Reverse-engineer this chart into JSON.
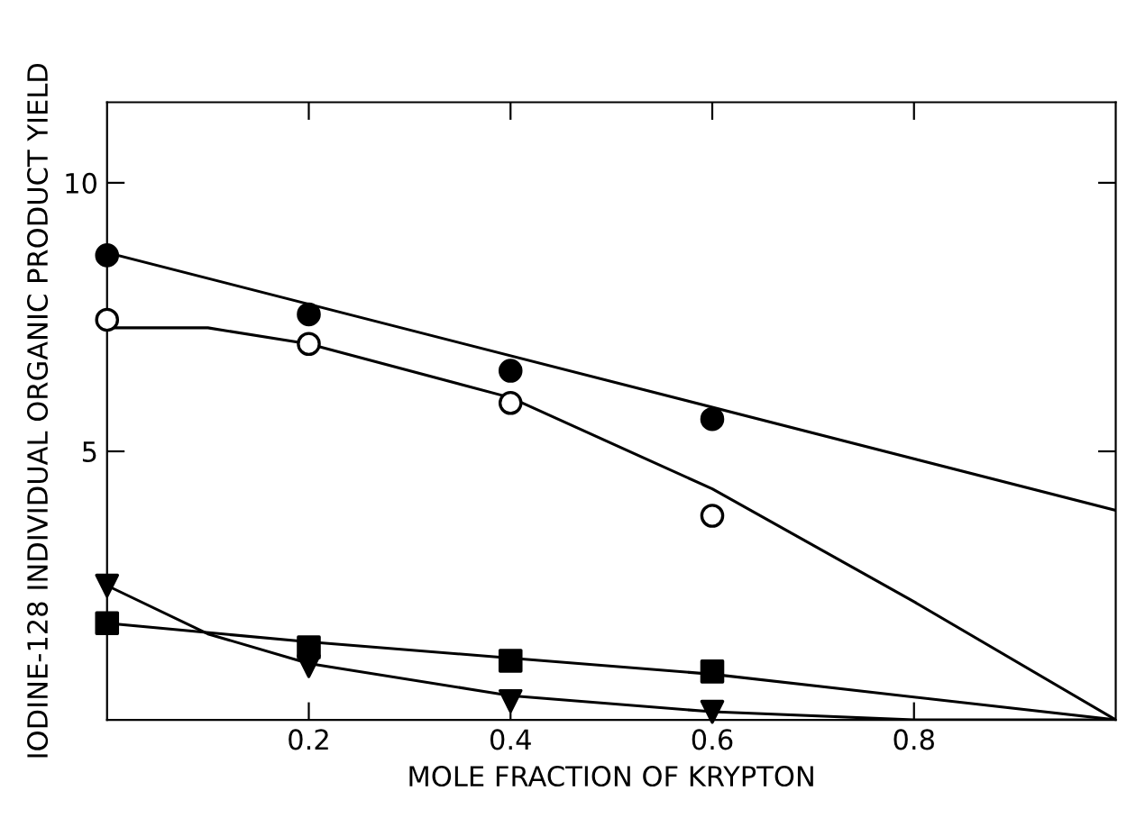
{
  "chart_data": {
    "type": "scatter",
    "xlabel": "MOLE FRACTION OF KRYPTON",
    "ylabel": "IODINE-128 INDIVIDUAL ORGANIC PRODUCT YIELD",
    "xlim": [
      0,
      1.0
    ],
    "ylim": [
      0,
      11.5
    ],
    "xticks": [
      0.2,
      0.4,
      0.6,
      0.8
    ],
    "yticks": [
      5,
      10
    ],
    "grid": false,
    "legend": false,
    "series": [
      {
        "marker": "circle",
        "color": "#000000",
        "x": [
          0,
          0.2,
          0.4,
          0.6
        ],
        "values": [
          8.65,
          7.55,
          6.5,
          5.6
        ]
      },
      {
        "marker": "circle",
        "color": "#ffffff",
        "x": [
          0,
          0.2,
          0.4,
          0.6
        ],
        "values": [
          7.45,
          7.0,
          5.9,
          3.8
        ]
      },
      {
        "marker": "square",
        "color": "#000000",
        "x": [
          0,
          0.2,
          0.4,
          0.6
        ],
        "values": [
          1.8,
          1.35,
          1.1,
          0.9
        ]
      },
      {
        "marker": "triangle",
        "color": "#000000",
        "x": [
          0,
          0.2,
          0.4,
          0.6
        ],
        "values": [
          2.5,
          1.0,
          0.35,
          0.15
        ]
      },
      {
        "type": "line",
        "marker": "none",
        "line_style": "solid",
        "color": "#000000",
        "x": [
          0,
          1.0
        ],
        "values": [
          8.7,
          3.9
        ]
      },
      {
        "type": "line",
        "marker": "none",
        "line_style": "solid",
        "color": "#000000",
        "x": [
          0,
          0.1,
          0.2,
          0.4,
          0.6,
          0.8,
          1.0
        ],
        "values": [
          7.3,
          7.3,
          7.0,
          6.0,
          4.3,
          2.2,
          0
        ]
      },
      {
        "type": "line",
        "marker": "none",
        "line_style": "solid",
        "color": "#000000",
        "x": [
          0,
          0.2,
          0.4,
          0.6,
          1.0
        ],
        "values": [
          1.8,
          1.45,
          1.15,
          0.85,
          0
        ]
      },
      {
        "type": "line",
        "marker": "none",
        "line_style": "solid",
        "color": "#000000",
        "x": [
          0,
          0.1,
          0.2,
          0.4,
          0.6,
          0.8,
          1.0
        ],
        "values": [
          2.5,
          1.6,
          1.05,
          0.45,
          0.15,
          0,
          0
        ]
      }
    ]
  }
}
